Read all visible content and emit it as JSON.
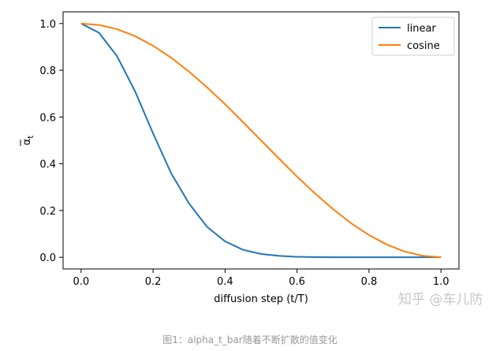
{
  "chart_data": {
    "type": "line",
    "x": [
      0.0,
      0.05,
      0.1,
      0.15,
      0.2,
      0.25,
      0.3,
      0.35,
      0.4,
      0.45,
      0.5,
      0.55,
      0.6,
      0.65,
      0.7,
      0.75,
      0.8,
      0.85,
      0.9,
      0.95,
      1.0
    ],
    "series": [
      {
        "name": "linear",
        "color": "#1f77b4",
        "values": [
          1.0,
          0.96,
          0.86,
          0.71,
          0.53,
          0.36,
          0.23,
          0.13,
          0.068,
          0.032,
          0.014,
          0.006,
          0.002,
          0.0007,
          0.0002,
          0.0001,
          0.0,
          0.0,
          0.0,
          0.0,
          0.0
        ]
      },
      {
        "name": "cosine",
        "color": "#ff7f0e",
        "values": [
          1.0,
          0.994,
          0.976,
          0.946,
          0.905,
          0.854,
          0.794,
          0.727,
          0.655,
          0.578,
          0.5,
          0.422,
          0.345,
          0.273,
          0.206,
          0.146,
          0.095,
          0.054,
          0.024,
          0.006,
          0.0
        ]
      }
    ],
    "xlabel": "diffusion step (t/T)",
    "ylabel_base": "α",
    "ylabel_sub": "t",
    "xlim": [
      -0.05,
      1.05
    ],
    "ylim": [
      -0.05,
      1.05
    ],
    "xticks": [
      "0.0",
      "0.2",
      "0.4",
      "0.6",
      "0.8",
      "1.0"
    ],
    "yticks": [
      "0.0",
      "0.2",
      "0.4",
      "0.6",
      "0.8",
      "1.0"
    ],
    "grid": false,
    "legend_position": "top-right"
  },
  "watermark": "知乎 @车儿防",
  "caption": "图1：alpha_t_bar随着不断扩散的值变化"
}
